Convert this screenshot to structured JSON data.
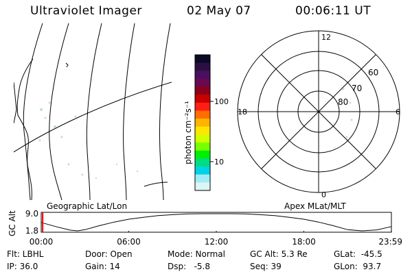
{
  "header": {
    "title": "Ultraviolet Imager",
    "date": "02 May 07",
    "time": "00:06:11 UT"
  },
  "geo_panel": {
    "label": "Geographic Lat/Lon"
  },
  "apex_panel": {
    "label": "Apex MLat/MLT",
    "mlt_labels": {
      "top": "12",
      "left": "18",
      "right": "6",
      "bottom": "0"
    },
    "lat_labels": [
      "60",
      "70",
      "80"
    ]
  },
  "colorbar": {
    "unit_label": "photon cm⁻²s⁻¹",
    "ticks": [
      "100",
      "10"
    ],
    "colors": [
      "#0a0a28",
      "#2a1040",
      "#4a1060",
      "#6a0850",
      "#8a0018",
      "#c80000",
      "#ff1e14",
      "#ff6e00",
      "#ffb400",
      "#ffe600",
      "#d2ff00",
      "#78ff00",
      "#00f000",
      "#00dc82",
      "#00d2e6",
      "#a0ebf5",
      "#dcf5f5"
    ]
  },
  "chart_data": {
    "type": "line",
    "title": "",
    "ylabel": "GC Alt",
    "x_ticks": [
      "00:00",
      "06:00",
      "12:00",
      "18:00",
      "23:59"
    ],
    "y_ticks": [
      "9.0",
      "1.8"
    ],
    "xlim": [
      0,
      24
    ],
    "ylim": [
      1.8,
      9.0
    ],
    "series": [
      {
        "x": [
          0.0,
          1.0,
          2.0,
          2.5,
          3.0,
          4.0,
          5.0,
          6.0,
          7.0,
          8.0,
          9.0,
          10.0,
          11.0,
          12.0,
          13.0,
          14.0,
          15.0,
          16.0,
          17.0,
          18.0,
          19.0,
          20.0,
          21.0,
          22.0,
          23.0,
          23.99
        ],
        "y": [
          5.3,
          3.6,
          2.1,
          1.8,
          2.3,
          4.0,
          5.5,
          6.7,
          7.5,
          8.2,
          8.6,
          8.9,
          9.0,
          9.0,
          9.0,
          8.9,
          8.6,
          8.2,
          7.5,
          6.7,
          5.5,
          4.0,
          2.3,
          1.8,
          2.2,
          3.6
        ]
      }
    ],
    "marker_time": 0.1,
    "marker_color": "#ff0000"
  },
  "info": {
    "flt": "Flt: LBHL",
    "ip": "IP: 36.0",
    "door": "Door: Open",
    "gain": "Gain: 14",
    "mode": "Mode: Normal",
    "dsp": "Dsp:   -5.8",
    "gcalt": "GC Alt: 5.3 Re",
    "seq": "Seq: 39",
    "glat": "GLat:  -45.5",
    "glon": "GLon:  93.7"
  }
}
